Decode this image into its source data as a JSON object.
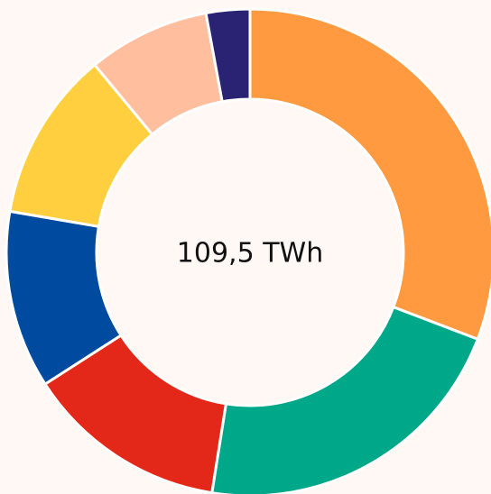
{
  "chart_data": {
    "type": "pie",
    "donut": true,
    "center_label": "109,5 TWh",
    "values": [
      30.8,
      21.7,
      13.4,
      11.8,
      11.3,
      8.1,
      2.9
    ],
    "colors": [
      "#ff9a40",
      "#00a88a",
      "#e32718",
      "#004a9f",
      "#ffcf40",
      "#ffbf9f",
      "#2a2374"
    ]
  }
}
